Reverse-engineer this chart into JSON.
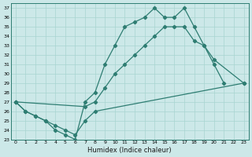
{
  "bg_color": "#cce8e8",
  "grid_color": "#a8d4d0",
  "line_color": "#2e7d72",
  "xlabel": "Humidex (Indice chaleur)",
  "xlim": [
    -0.5,
    23.5
  ],
  "ylim": [
    23,
    37.5
  ],
  "xtick_vals": [
    0,
    1,
    2,
    3,
    4,
    5,
    6,
    7,
    8,
    9,
    10,
    11,
    12,
    13,
    14,
    15,
    16,
    17,
    18,
    19,
    20,
    21,
    22,
    23
  ],
  "ytick_vals": [
    23,
    24,
    25,
    26,
    27,
    28,
    29,
    30,
    31,
    32,
    33,
    34,
    35,
    36,
    37
  ],
  "curve1_x": [
    0,
    1,
    2,
    3,
    4,
    5,
    6,
    7,
    8,
    9,
    10,
    11,
    12,
    13,
    14,
    15,
    16,
    17,
    18,
    19,
    20,
    21
  ],
  "curve1_y": [
    27.0,
    26.0,
    25.5,
    25.0,
    24.0,
    23.5,
    23.0,
    27.0,
    28.0,
    31.0,
    33.0,
    35.0,
    35.5,
    36.0,
    37.0,
    36.0,
    36.0,
    37.0,
    35.0,
    33.0,
    31.0,
    29.0
  ],
  "curve2_x": [
    0,
    7,
    8,
    9,
    10,
    11,
    12,
    13,
    14,
    15,
    16,
    17,
    18,
    19,
    20,
    23
  ],
  "curve2_y": [
    27.0,
    26.5,
    27.0,
    28.5,
    30.0,
    31.0,
    32.0,
    33.0,
    34.0,
    35.0,
    35.0,
    35.0,
    33.5,
    33.0,
    31.5,
    29.0
  ],
  "curve3_x": [
    0,
    1,
    2,
    3,
    4,
    5,
    6,
    7,
    8,
    23
  ],
  "curve3_y": [
    27.0,
    26.0,
    25.5,
    25.0,
    24.5,
    24.0,
    23.5,
    25.0,
    26.0,
    29.0
  ]
}
